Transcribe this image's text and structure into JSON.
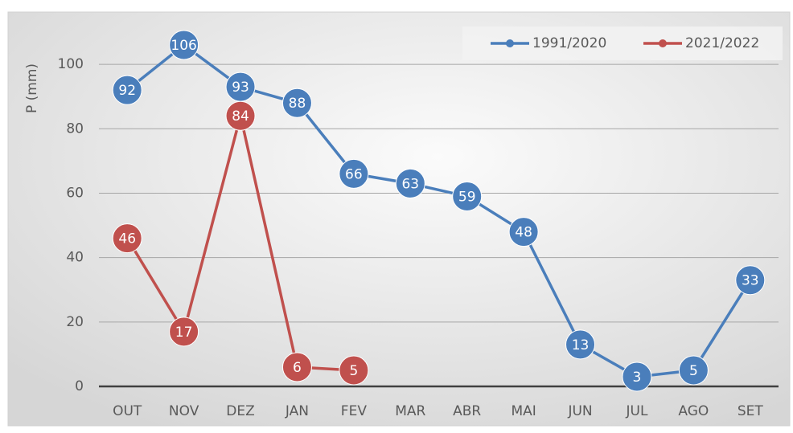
{
  "chart_data": {
    "type": "line",
    "y_label": "P (mm)",
    "categories": [
      "OUT",
      "NOV",
      "DEZ",
      "JAN",
      "FEV",
      "MAR",
      "ABR",
      "MAI",
      "JUN",
      "JUL",
      "AGO",
      "SET"
    ],
    "series": [
      {
        "name": "1991/2020",
        "color": "#4a7ebb",
        "values": [
          92,
          106,
          93,
          88,
          66,
          63,
          59,
          48,
          13,
          3,
          5,
          33
        ]
      },
      {
        "name": "2021/2022",
        "color": "#c0504d",
        "values": [
          46,
          17,
          84,
          6,
          5,
          null,
          null,
          null,
          null,
          null,
          null,
          null
        ]
      }
    ],
    "ylim": [
      0,
      110
    ],
    "yticks": [
      0,
      20,
      40,
      60,
      80,
      100
    ],
    "grid": true,
    "legend": "top-right"
  }
}
